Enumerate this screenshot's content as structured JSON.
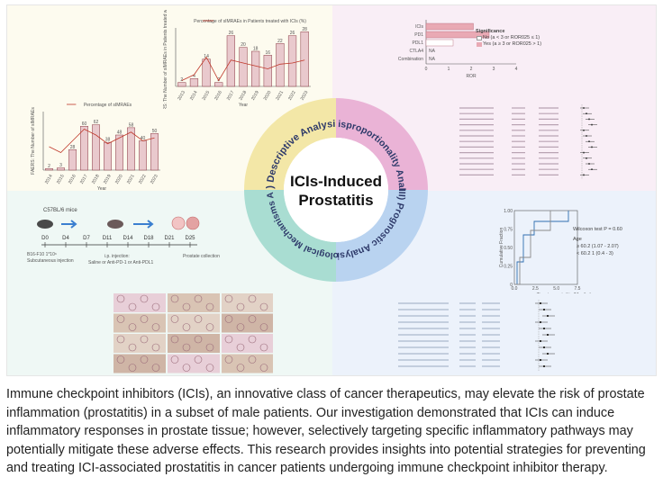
{
  "center_title": "ICIs-Induced Prostatitis",
  "center_title_line1": "ICIs-Induced",
  "center_title_line2": "Prostatitis",
  "quadrant_labels": {
    "q1": "(I) Descriptive Analysis",
    "q2": "(II) Disproportionality Analysis",
    "q3": "(III) Prognostic Analysis",
    "q4": "(IV) Biological Mechanisms Analysis"
  },
  "chart_data": [
    {
      "type": "bar",
      "title": "Percentage of sIMRAEs in Patients treated with ICIs (%)",
      "ylabel": "FAERS: The Number of sIMRAEs in Patients treated with ICIs",
      "xlabel": "Year",
      "categories": [
        "2013",
        "2014",
        "2015",
        "2016",
        "2017",
        "2018",
        "2019",
        "2020",
        "2021",
        "2022",
        "2023"
      ],
      "values": [
        2,
        4,
        14,
        2,
        26,
        20,
        18,
        16,
        22,
        26,
        28
      ],
      "line_values": [
        0.1,
        0.2,
        0.5,
        0.1,
        0.45,
        0.4,
        0.35,
        0.3,
        0.38,
        0.4,
        0.45
      ],
      "ylim": [
        0,
        30
      ]
    },
    {
      "type": "bar",
      "title": "Percentage of sIMRAEs",
      "ylabel": "FAERS: The Number of sIMRAEs",
      "xlabel": "Year",
      "categories": [
        "2014",
        "2015",
        "2016",
        "2017",
        "2018",
        "2019",
        "2020",
        "2021",
        "2022",
        "2023"
      ],
      "values": [
        2,
        3,
        28,
        60,
        62,
        38,
        48,
        58,
        40,
        50
      ],
      "line_values": [
        0.4,
        0.3,
        0.5,
        0.7,
        0.6,
        0.45,
        0.55,
        0.65,
        0.5,
        0.55
      ],
      "ylim": [
        0,
        80
      ]
    },
    {
      "type": "bar",
      "title": "Significance",
      "xlabel": "ROR",
      "categories": [
        "ICIs",
        "PD1",
        "PDL1",
        "CTLA4",
        "Combination"
      ],
      "values": [
        2.1,
        2.8,
        1.2,
        0,
        0
      ],
      "na_labels": [
        "",
        "",
        "",
        "NA",
        "NA"
      ],
      "legend": [
        "No (a < 3 or ROR025 ≤ 1)",
        "Yes (a ≥ 3 or ROR025 > 1)"
      ],
      "xlim": [
        0,
        4
      ]
    }
  ],
  "q1": {
    "y_axis_top": "FAERS: The Number of sIMRAEs",
    "x_label": "Year",
    "legend_top": "Percentage of sIMRAEs in Patients treated with ICIs (%)",
    "legend_bottom": "Percentage of sIMRAEs"
  },
  "q2": {
    "legend_title": "Significance",
    "legend_no": "No (a < 3 or ROR025 ≤ 1)",
    "legend_yes": "Yes (a ≥ 3 or ROR025 > 1)",
    "x_label": "ROR",
    "na1": "NA",
    "na2": "NA"
  },
  "q3": {
    "mice": "C57BL/6 mice",
    "timeline": [
      "D0",
      "D4",
      "D7",
      "D11",
      "D14",
      "D18",
      "D21",
      "D25"
    ],
    "b16": "B16-F10 1*10⁶",
    "subcut": "Subcutaneous injection",
    "ip": "i.p. injection:",
    "treat": "Saline or Anti-PD-1 or Anti-PDL1",
    "prostate": "Prostate collection"
  },
  "q4": {
    "wilcoxon": "Wilcoxon test P = 0.60",
    "age_label": "Age",
    "age1": "≥ 60.2 (1.07 - 2.07)",
    "age2": "< 60.2 1 (0.4 - 3)",
    "x_label": "Time to prostatitis (Months)",
    "y_label": "Cumulative Fraction",
    "ticks": [
      "0.0",
      "2.5",
      "5.0",
      "7.5"
    ]
  },
  "caption": "Immune checkpoint inhibitors (ICIs), an innovative class of cancer therapeutics, may elevate the risk of prostate inflammation (prostatitis) in a subset of male patients. Our investigation demonstrated that ICIs can induce inflammatory responses in prostate tissue; however, selectively targeting specific inflammatory pathways may potentially mitigate these adverse effects. This research provides insights into potential strategies for preventing and treating ICI-associated prostatitis in cancer patients undergoing immune checkpoint inhibitor therapy."
}
